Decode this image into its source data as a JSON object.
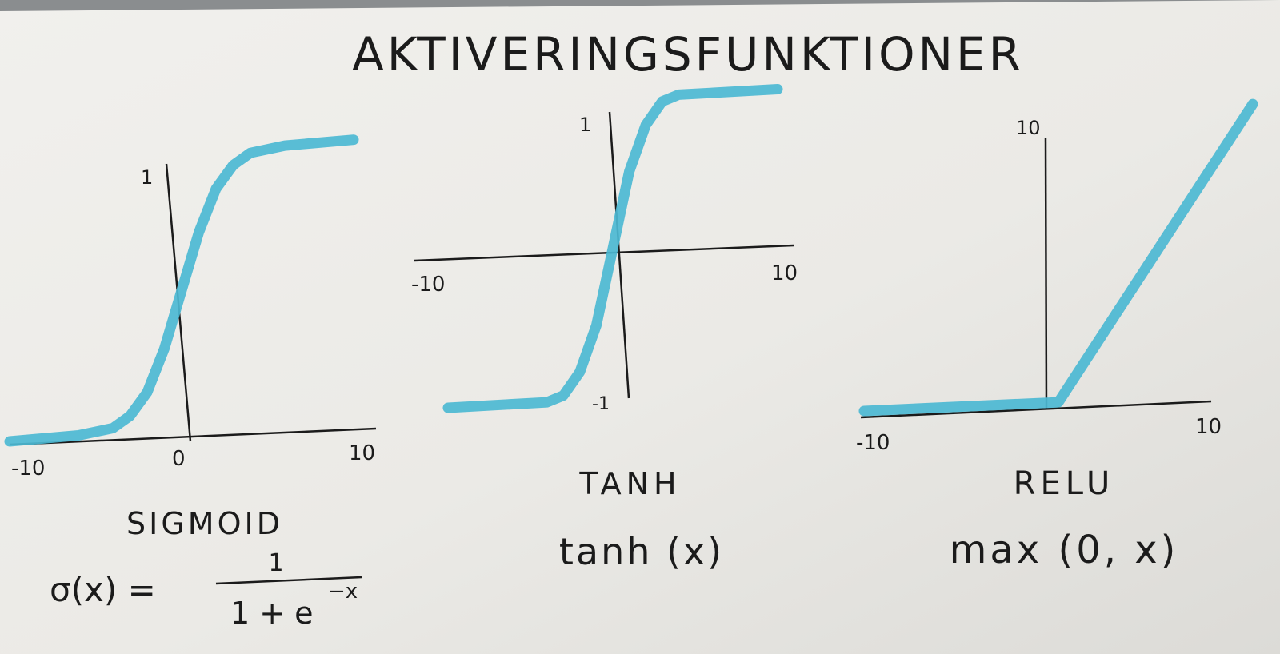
{
  "title": "AKTIVERINGSFUNKTIONER",
  "curve_color": "#4cb8d3",
  "ink_color": "#1b1b1b",
  "paper_color": "#ecebe7",
  "chart_data": [
    {
      "type": "line",
      "name": "SIGMOID",
      "formula": {
        "lhs": "σ(x) =",
        "numerator": "1",
        "denominator": "1 + e",
        "exponent": "−x"
      },
      "x_ticks": [
        "-10",
        "0",
        "10"
      ],
      "y_ticks": [
        "1"
      ],
      "xlim": [
        -10,
        10
      ],
      "ylim": [
        0,
        1
      ],
      "x": [
        -10,
        -6,
        -4,
        -3,
        -2,
        -1,
        0,
        1,
        2,
        3,
        4,
        6,
        10
      ],
      "y": [
        0.0,
        0.01,
        0.03,
        0.07,
        0.15,
        0.3,
        0.5,
        0.7,
        0.85,
        0.93,
        0.97,
        0.99,
        1.0
      ]
    },
    {
      "type": "line",
      "name": "TANH",
      "formula": {
        "expr": "tanh (x)"
      },
      "x_ticks": [
        "-10",
        "10"
      ],
      "y_ticks": [
        "1",
        "-1"
      ],
      "xlim": [
        -10,
        10
      ],
      "ylim": [
        -1,
        1
      ],
      "x": [
        -10,
        -4,
        -3,
        -2,
        -1,
        0,
        1,
        2,
        3,
        4,
        10
      ],
      "y": [
        -1,
        -0.99,
        -0.95,
        -0.8,
        -0.5,
        0,
        0.5,
        0.8,
        0.95,
        0.99,
        1
      ]
    },
    {
      "type": "line",
      "name": "RELU",
      "formula": {
        "expr": "max (0, x)"
      },
      "x_ticks": [
        "-10",
        "10"
      ],
      "y_ticks": [
        "10"
      ],
      "xlim": [
        -10,
        10
      ],
      "ylim": [
        0,
        10
      ],
      "x": [
        -10,
        0,
        10
      ],
      "y": [
        0,
        0,
        10
      ]
    }
  ]
}
